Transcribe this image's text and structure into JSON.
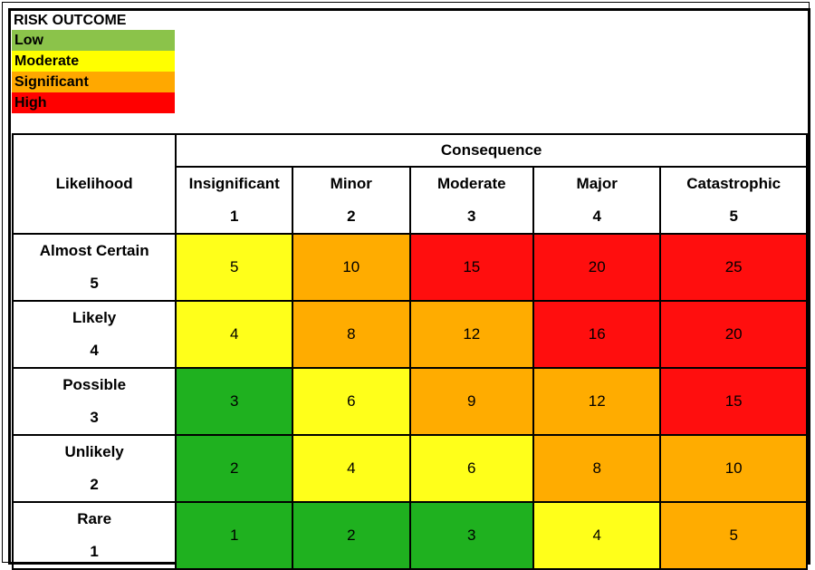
{
  "legend": {
    "title": "RISK OUTCOME",
    "items": [
      {
        "label": "Low",
        "color": "#8bc34a"
      },
      {
        "label": "Moderate",
        "color": "#ffff00"
      },
      {
        "label": "Significant",
        "color": "#ffa800"
      },
      {
        "label": "High",
        "color": "#ff0000"
      }
    ]
  },
  "matrix": {
    "likelihood_header": "Likelihood",
    "consequence_header": "Consequence",
    "consequences": [
      {
        "label": "Insignificant",
        "number": "1"
      },
      {
        "label": "Minor",
        "number": "2"
      },
      {
        "label": "Moderate",
        "number": "3"
      },
      {
        "label": "Major",
        "number": "4"
      },
      {
        "label": "Catastrophic",
        "number": "5"
      }
    ],
    "rows": [
      {
        "label": "Almost Certain",
        "number": "5",
        "values": [
          "5",
          "10",
          "15",
          "20",
          "25"
        ],
        "levels": [
          "moderate",
          "significant",
          "high",
          "high",
          "high"
        ]
      },
      {
        "label": "Likely",
        "number": "4",
        "values": [
          "4",
          "8",
          "12",
          "16",
          "20"
        ],
        "levels": [
          "moderate",
          "significant",
          "significant",
          "high",
          "high"
        ]
      },
      {
        "label": "Possible",
        "number": "3",
        "values": [
          "3",
          "6",
          "9",
          "12",
          "15"
        ],
        "levels": [
          "low",
          "moderate",
          "significant",
          "significant",
          "high"
        ]
      },
      {
        "label": "Unlikely",
        "number": "2",
        "values": [
          "2",
          "4",
          "6",
          "8",
          "10"
        ],
        "levels": [
          "low",
          "moderate",
          "moderate",
          "significant",
          "significant"
        ]
      },
      {
        "label": "Rare",
        "number": "1",
        "values": [
          "1",
          "2",
          "3",
          "4",
          "5"
        ],
        "levels": [
          "low",
          "low",
          "low",
          "moderate",
          "significant"
        ]
      }
    ],
    "level_colors": {
      "low": "#1fb11f",
      "moderate": "#ffff1a",
      "significant": "#ffac00",
      "high": "#ff0e0e"
    }
  }
}
